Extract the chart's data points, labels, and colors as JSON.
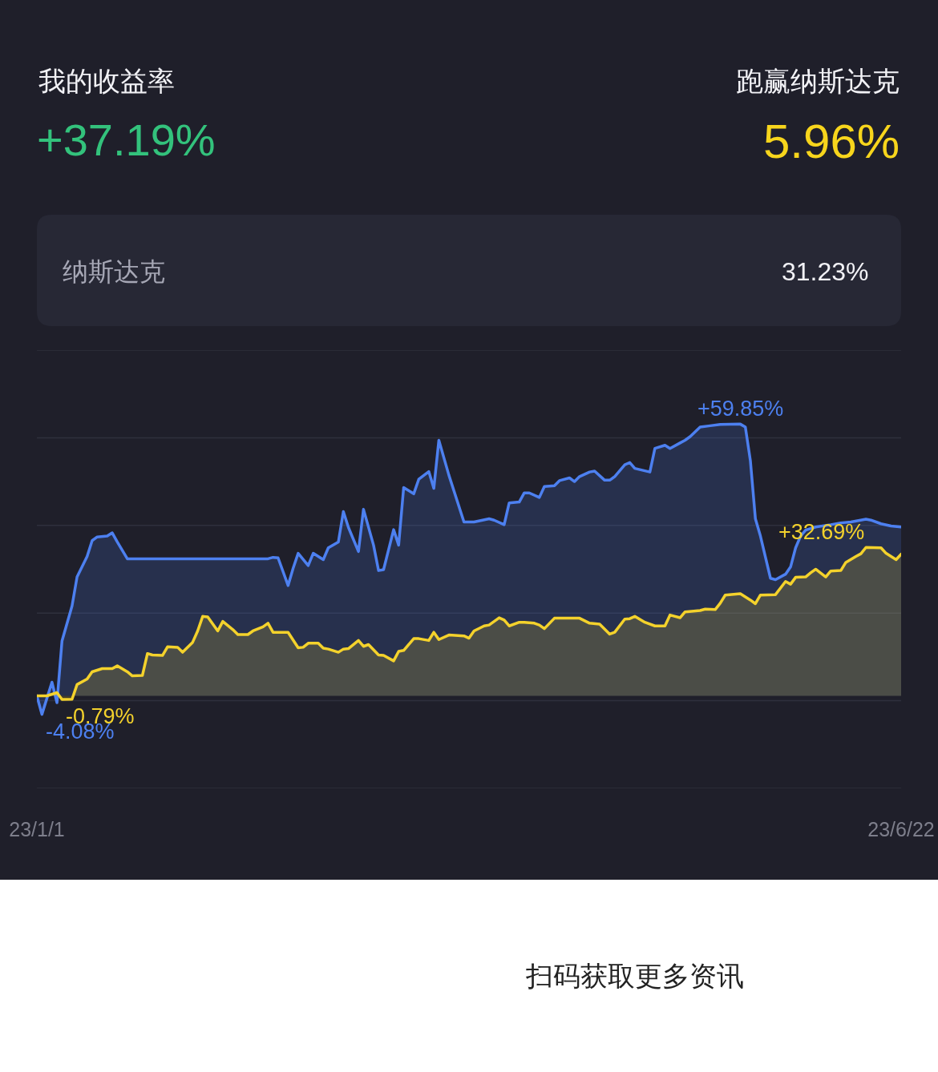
{
  "chart_data": {
    "type": "area",
    "series": [
      {
        "color": "#4d80f0",
        "x": [
          "--01-01",
          "--01-02",
          "--01-04",
          "--01-05",
          "--01-06",
          "--01-08",
          "--01-09",
          "--01-11",
          "--01-12",
          "--01-13",
          "--01-15",
          "--01-16",
          "--01-17",
          "--01-19",
          "--02-16",
          "--02-17",
          "--02-18",
          "--02-20",
          "--02-21",
          "--02-22",
          "--02-24",
          "--02-25",
          "--02-27",
          "--02-28",
          "--03-02",
          "--03-03",
          "--03-04",
          "--03-06",
          "--03-07",
          "--03-09",
          "--03-10",
          "--03-11",
          "--03-13",
          "--03-14",
          "--03-15",
          "--03-17",
          "--03-18",
          "--03-20",
          "--03-21",
          "--03-22",
          "--03-24",
          "--03-27",
          "--03-29",
          "--04-01",
          "--04-02",
          "--04-04",
          "--04-05",
          "--04-07",
          "--04-08",
          "--04-09",
          "--04-11",
          "--04-12",
          "--04-14",
          "--04-15",
          "--04-17",
          "--04-18",
          "--04-19",
          "--04-21",
          "--04-22",
          "--04-24",
          "--04-25",
          "--04-26",
          "--04-28",
          "--04-29",
          "--04-30",
          "--05-03",
          "--05-04",
          "--05-06",
          "--05-07",
          "--05-09",
          "--05-10",
          "--05-11",
          "--05-13",
          "--05-15",
          "--05-17",
          "--05-21",
          "--05-22",
          "--05-23",
          "--05-24",
          "--05-25",
          "--05-27",
          "--05-28",
          "--05-30",
          "--05-31",
          "--06-01",
          "--06-02",
          "--06-03",
          "--06-05",
          "--06-08",
          "--06-10",
          "--06-12",
          "--06-15",
          "--06-16",
          "--06-18",
          "--06-20",
          "--06-22"
        ],
        "values": [
          0,
          -4.08,
          3.0,
          -1.5,
          12.1,
          19.8,
          26.2,
          30.7,
          34.2,
          35.0,
          35.2,
          35.9,
          33.9,
          30.2,
          30.2,
          30.5,
          30.4,
          24.3,
          28.1,
          31.4,
          28.7,
          31.4,
          30.0,
          32.6,
          33.9,
          40.6,
          37.1,
          31.8,
          41.1,
          33.2,
          27.6,
          27.8,
          36.6,
          33.2,
          45.9,
          44.5,
          47.7,
          49.4,
          45.7,
          56.3,
          48.6,
          38.3,
          38.3,
          39.0,
          38.7,
          37.7,
          42.5,
          42.7,
          44.7,
          44.7,
          43.7,
          46.1,
          46.3,
          47.4,
          48.0,
          47.2,
          48.3,
          49.3,
          49.5,
          47.5,
          47.5,
          48.3,
          50.9,
          51.4,
          50.1,
          49.3,
          54.5,
          55.2,
          54.5,
          55.7,
          56.3,
          57.1,
          59.2,
          59.5,
          59.8,
          59.85,
          59.2,
          51.8,
          39.0,
          35.2,
          25.9,
          25.6,
          26.8,
          28.4,
          32.6,
          35.2,
          36.5,
          37.2,
          37.7,
          38.1,
          38.3,
          38.9,
          38.7,
          37.9,
          37.4,
          37.19
        ],
        "value_labels": [
          null,
          "-4.08%",
          null,
          null,
          null,
          null,
          null,
          null,
          null,
          null,
          null,
          null,
          null,
          null,
          null,
          null,
          null,
          null,
          null,
          null,
          null,
          null,
          null,
          null,
          null,
          null,
          null,
          null,
          null,
          null,
          null,
          null,
          null,
          null,
          null,
          null,
          null,
          null,
          null,
          null,
          null,
          null,
          null,
          null,
          null,
          null,
          null,
          null,
          null,
          null,
          null,
          null,
          null,
          null,
          null,
          null,
          null,
          null,
          null,
          null,
          null,
          null,
          null,
          null,
          null,
          null,
          null,
          null,
          null,
          null,
          null,
          null,
          null,
          null,
          null,
          "+59.85%",
          null,
          null,
          null,
          null,
          null,
          null,
          null,
          null,
          null,
          null,
          null,
          null,
          null,
          null,
          null,
          null,
          null,
          null,
          null,
          null
        ]
      },
      {
        "color": "#f4d22c",
        "x": [
          "--01-01",
          "--01-03",
          "--01-05",
          "--01-06",
          "--01-08",
          "--01-09",
          "--01-11",
          "--01-12",
          "--01-14",
          "--01-16",
          "--01-17",
          "--01-19",
          "--01-20",
          "--01-22",
          "--01-23",
          "--01-24",
          "--01-26",
          "--01-27",
          "--01-29",
          "--01-30",
          "--02-01",
          "--02-02",
          "--02-03",
          "--02-04",
          "--02-06",
          "--02-07",
          "--02-09",
          "--02-10",
          "--02-12",
          "--02-13",
          "--02-15",
          "--02-16",
          "--02-17",
          "--02-20",
          "--02-22",
          "--02-23",
          "--02-24",
          "--02-26",
          "--02-27",
          "--02-28",
          "--03-02",
          "--03-03",
          "--03-04",
          "--03-06",
          "--03-07",
          "--03-08",
          "--03-10",
          "--03-11",
          "--03-13",
          "--03-14",
          "--03-15",
          "--03-17",
          "--03-18",
          "--03-20",
          "--03-21",
          "--03-22",
          "--03-24",
          "--03-27",
          "--03-28",
          "--03-29",
          "--03-31",
          "--04-01",
          "--04-03",
          "--04-04",
          "--04-05",
          "--04-07",
          "--04-08",
          "--04-10",
          "--04-11",
          "--04-12",
          "--04-14",
          "--04-16",
          "--04-19",
          "--04-21",
          "--04-23",
          "--04-25",
          "--04-26",
          "--04-28",
          "--04-29",
          "--04-30",
          "--05-02",
          "--05-04",
          "--05-06",
          "--05-07",
          "--05-09",
          "--05-10",
          "--05-13",
          "--05-14",
          "--05-16",
          "--05-17",
          "--05-18",
          "--05-21",
          "--05-23",
          "--05-24",
          "--05-25",
          "--05-28",
          "--05-30",
          "--05-31",
          "--06-01",
          "--06-03",
          "--06-04",
          "--06-05",
          "--06-07",
          "--06-08",
          "--06-10",
          "--06-11",
          "--06-13",
          "--06-14",
          "--06-15",
          "--06-18",
          "--06-19",
          "--06-21",
          "--06-22"
        ],
        "values": [
          0,
          0.0,
          0.7,
          -0.79,
          -0.75,
          2.5,
          3.7,
          5.3,
          6.0,
          6.0,
          6.6,
          5.3,
          4.4,
          4.5,
          9.3,
          9.0,
          8.9,
          10.8,
          10.7,
          9.6,
          11.8,
          14.3,
          17.5,
          17.4,
          14.3,
          16.4,
          14.6,
          13.5,
          13.5,
          14.3,
          15.2,
          16.0,
          14.0,
          14.0,
          10.6,
          10.7,
          11.6,
          11.6,
          10.5,
          10.3,
          9.6,
          10.3,
          10.4,
          12.2,
          10.9,
          11.3,
          9.0,
          8.9,
          7.7,
          9.8,
          10.0,
          12.6,
          12.6,
          12.2,
          14.0,
          12.4,
          13.4,
          13.2,
          12.7,
          14.3,
          15.4,
          15.6,
          17.2,
          16.7,
          15.4,
          16.2,
          16.2,
          16.0,
          15.6,
          14.8,
          17.1,
          17.1,
          17.1,
          16.0,
          15.8,
          13.6,
          14.0,
          16.9,
          17.0,
          17.5,
          16.2,
          15.4,
          15.4,
          17.8,
          17.2,
          18.5,
          18.8,
          19.1,
          19.0,
          20.4,
          22.2,
          22.5,
          21.1,
          20.3,
          22.2,
          22.3,
          25.2,
          24.6,
          26.1,
          26.2,
          27.1,
          27.9,
          26.2,
          27.5,
          27.6,
          29.4,
          30.7,
          31.3,
          32.69,
          32.6,
          31.4,
          30.0,
          31.23
        ],
        "value_labels": [
          null,
          null,
          null,
          "-0.79%",
          null,
          null,
          null,
          null,
          null,
          null,
          null,
          null,
          null,
          null,
          null,
          null,
          null,
          null,
          null,
          null,
          null,
          null,
          null,
          null,
          null,
          null,
          null,
          null,
          null,
          null,
          null,
          null,
          null,
          null,
          null,
          null,
          null,
          null,
          null,
          null,
          null,
          null,
          null,
          null,
          null,
          null,
          null,
          null,
          null,
          null,
          null,
          null,
          null,
          null,
          null,
          null,
          null,
          null,
          null,
          null,
          null,
          null,
          null,
          null,
          null,
          null,
          null,
          null,
          null,
          null,
          null,
          null,
          null,
          null,
          null,
          null,
          null,
          null,
          null,
          null,
          null,
          null,
          null,
          null,
          null,
          null,
          null,
          null,
          null,
          null,
          null,
          null,
          null,
          null,
          null,
          null,
          null,
          null,
          null,
          null,
          null,
          null,
          null,
          null,
          null,
          null,
          null,
          null,
          "+32.69%",
          null,
          null,
          null,
          null
        ]
      }
    ],
    "xlim": [
      "--01-01",
      "--06-22"
    ],
    "xticks": [
      {
        "value": "--01-01",
        "label": "23/1/1"
      },
      {
        "value": "--06-22",
        "label": "23/6/22"
      }
    ],
    "tick_labels": "x",
    "grid": "y",
    "line_style": "solid",
    "annotations": [
      "我的收益率",
      "跑赢纳斯达克",
      "+37.19%",
      "5.96%",
      "纳斯达克",
      "31.23%",
      "扫码获取更多资讯"
    ]
  }
}
